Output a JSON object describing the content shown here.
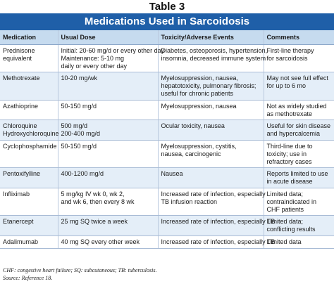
{
  "table_number": "Table 3",
  "title": "Medications Used in Sarcoidosis",
  "headers": [
    "Medication",
    "Usual Dose",
    "Toxicity/Adverse Events",
    "Comments"
  ],
  "rows": [
    {
      "medication": [
        "Prednisone",
        "equivalent"
      ],
      "dose": [
        "Initial: 20-60 mg/d or every other day",
        "Maintenance: 5-10 mg",
        "daily or every other day"
      ],
      "toxicity": [
        "Diabetes, osteoporosis, hypertension,",
        "insomnia, decreased immune system"
      ],
      "comments": [
        "First-line therapy",
        "for sarcoidosis"
      ]
    },
    {
      "medication": [
        "Methotrexate"
      ],
      "dose": [
        "10-20 mg/wk"
      ],
      "toxicity": [
        "Myelosuppression, nausea,",
        "hepatotoxicity, pulmonary fibrosis;",
        "useful for chronic patients"
      ],
      "comments": [
        "May not see full effect",
        "for up to 6 mo"
      ]
    },
    {
      "medication": [
        "Azathioprine"
      ],
      "dose": [
        "50-150 mg/d"
      ],
      "toxicity": [
        "Myelosuppression, nausea"
      ],
      "comments": [
        "Not as widely studied",
        "as methotrexate"
      ]
    },
    {
      "medication": [
        "Chloroquine",
        "Hydroxychloroquine"
      ],
      "dose": [
        "500 mg/d",
        "200-400 mg/d"
      ],
      "toxicity": [
        "Ocular toxicity, nausea"
      ],
      "comments": [
        "Useful for skin disease",
        "and hypercalcemia"
      ]
    },
    {
      "medication": [
        "Cyclophosphamide"
      ],
      "dose": [
        "50-150 mg/d"
      ],
      "toxicity": [
        "Myelosuppression, cystitis,",
        "nausea, carcinogenic"
      ],
      "comments": [
        "Third-line due to",
        "toxicity; use in",
        "refractory cases"
      ]
    },
    {
      "medication": [
        "Pentoxifylline"
      ],
      "dose": [
        "400-1200 mg/d"
      ],
      "toxicity": [
        "Nausea"
      ],
      "comments": [
        "Reports limited to use",
        "in acute disease"
      ]
    },
    {
      "medication": [
        "Infliximab"
      ],
      "dose": [
        "5 mg/kg IV wk 0, wk 2,",
        "and wk 6, then every 8 wk"
      ],
      "toxicity": [
        "Increased rate of infection, especially",
        "TB infusion reaction"
      ],
      "comments": [
        "Limited data;",
        "contraindicated in",
        "CHF patients"
      ]
    },
    {
      "medication": [
        "Etanercept"
      ],
      "dose": [
        "25 mg SQ twice a week"
      ],
      "toxicity": [
        "Increased rate of infection, especially TB"
      ],
      "comments": [
        "Limited data;",
        "conflicting results"
      ]
    },
    {
      "medication": [
        "Adalimumab"
      ],
      "dose": [
        "40 mg SQ every other week"
      ],
      "toxicity": [
        "Increased rate of infection, especially TB"
      ],
      "comments": [
        "Limited data"
      ]
    }
  ],
  "footnote": "CHF: congestive heart failure; SQ: subcutaneous; TB: tuberculosis.",
  "source": "Source: Reference 18."
}
